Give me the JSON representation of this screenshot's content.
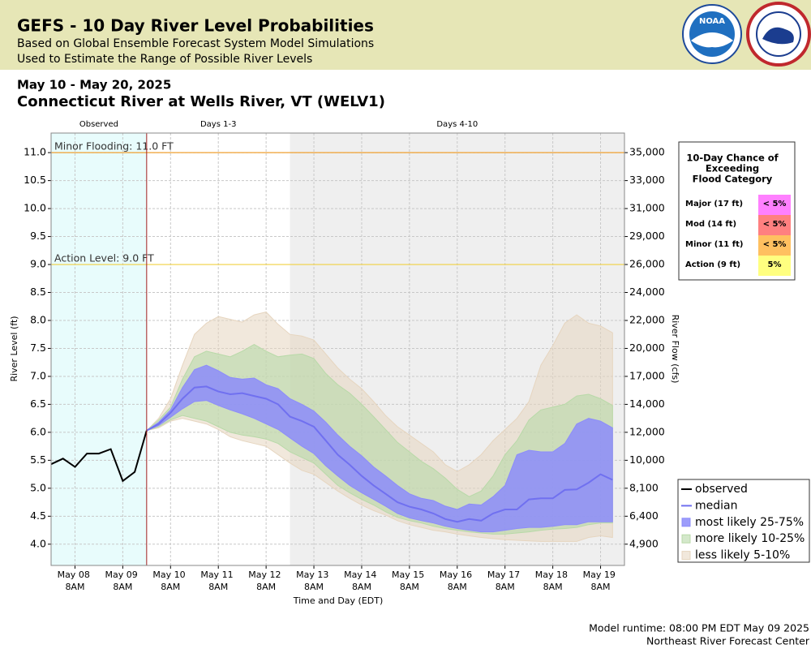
{
  "header": {
    "title": "GEFS - 10 Day River Level Probabilities",
    "subtitle": [
      "Based on Global Ensemble Forecast System Model Simulations",
      "Used to Estimate the Range of Possible River Levels"
    ],
    "logo": "NOAA"
  },
  "chart_data": {
    "type": "river-probability",
    "date_range": "May 10 - May 20, 2025",
    "title": "Connecticut River at Wells River, VT (WELV1)",
    "xlabel": "Time and Day (EDT)",
    "ylabel": "River Level (ft)",
    "y2label": "River Flow (cfs)",
    "grid": true,
    "legend": "lower right",
    "xlim": [
      "2025-05-07T20:00",
      "2025-05-19T20:00"
    ],
    "xticks": [
      {
        "value": "2025-05-08T08:00",
        "label": "May 08 8AM"
      },
      {
        "value": "2025-05-09T08:00",
        "label": "May 09 8AM"
      },
      {
        "value": "2025-05-10T08:00",
        "label": "May 10 8AM"
      },
      {
        "value": "2025-05-11T08:00",
        "label": "May 11 8AM"
      },
      {
        "value": "2025-05-12T08:00",
        "label": "May 12 8AM"
      },
      {
        "value": "2025-05-13T08:00",
        "label": "May 13 8AM"
      },
      {
        "value": "2025-05-14T08:00",
        "label": "May 14 8AM"
      },
      {
        "value": "2025-05-15T08:00",
        "label": "May 15 8AM"
      },
      {
        "value": "2025-05-16T08:00",
        "label": "May 16 8AM"
      },
      {
        "value": "2025-05-17T08:00",
        "label": "May 17 8AM"
      },
      {
        "value": "2025-05-18T08:00",
        "label": "May 18 8AM"
      },
      {
        "value": "2025-05-19T08:00",
        "label": "May 19 8AM"
      }
    ],
    "ylim": [
      3.62,
      11.35
    ],
    "yticks": [
      {
        "value": 4,
        "label": "4.0"
      },
      4.5,
      {
        "value": 5,
        "label": "5.0"
      },
      5.5,
      {
        "value": 6,
        "label": "6.0"
      },
      6.5,
      {
        "value": 7,
        "label": "7.0"
      },
      7.5,
      {
        "value": 8,
        "label": "8.0"
      },
      8.5,
      {
        "value": 9,
        "label": "9.0"
      },
      9.5,
      {
        "value": 10,
        "label": "10.0"
      },
      10.5,
      {
        "value": 11,
        "label": "11.0"
      }
    ],
    "y2ticks": [
      {
        "value": 4900,
        "label": "4,900",
        "stage": 4.0
      },
      {
        "value": 6400,
        "label": "6,400",
        "stage": 4.5
      },
      {
        "value": 8100,
        "label": "8,100",
        "stage": 5.0
      },
      {
        "value": 10000,
        "label": "10,000",
        "stage": 5.5
      },
      {
        "value": 12000,
        "label": "12,000",
        "stage": 6.0
      },
      {
        "value": 14000,
        "label": "14,000",
        "stage": 6.5
      },
      {
        "value": 17000,
        "label": "17,000",
        "stage": 7.0
      },
      {
        "value": 20000,
        "label": "20,000",
        "stage": 7.5
      },
      {
        "value": 22000,
        "label": "22,000",
        "stage": 8.0
      },
      {
        "value": 24000,
        "label": "24,000",
        "stage": 8.5
      },
      {
        "value": 26000,
        "label": "26,000",
        "stage": 9.0
      },
      {
        "value": 29000,
        "label": "29,000",
        "stage": 9.5
      },
      {
        "value": 31000,
        "label": "31,000",
        "stage": 10.0
      },
      {
        "value": 33000,
        "label": "33,000",
        "stage": 10.5
      },
      {
        "value": 35000,
        "label": "35,000",
        "stage": 11.0
      }
    ],
    "periods": [
      {
        "label": "Observed",
        "start": "2025-05-07T20:00",
        "end": "2025-05-09T20:00",
        "color": "#e8fcfc"
      },
      {
        "label": "Days 1-3",
        "start": "2025-05-09T20:00",
        "end": "2025-05-12T20:00",
        "color": "#ffffff"
      },
      {
        "label": "Days 4-10",
        "start": "2025-05-12T20:00",
        "end": "2025-05-19T20:00",
        "color": "#efefef"
      }
    ],
    "thresholds": [
      {
        "label": "Minor Flooding: 11.0 FT",
        "value": 11.0,
        "color": "#f0a030"
      },
      {
        "label": "Action Level: 9.0 FT",
        "value": 9.0,
        "color": "#f0d040"
      }
    ],
    "observed": {
      "name": "observed",
      "color": "#000000",
      "x": [
        "2025-05-07T20:00",
        "2025-05-08T02:00",
        "2025-05-08T08:00",
        "2025-05-08T14:00",
        "2025-05-08T20:00",
        "2025-05-09T02:00",
        "2025-05-09T08:00",
        "2025-05-09T14:00",
        "2025-05-09T20:00"
      ],
      "values": [
        5.43,
        5.53,
        5.38,
        5.62,
        5.62,
        5.7,
        5.13,
        5.29,
        6.03
      ]
    },
    "forecast": {
      "x": [
        "2025-05-09T20:00",
        "2025-05-10T02:00",
        "2025-05-10T08:00",
        "2025-05-10T14:00",
        "2025-05-10T20:00",
        "2025-05-11T02:00",
        "2025-05-11T08:00",
        "2025-05-11T14:00",
        "2025-05-11T20:00",
        "2025-05-12T02:00",
        "2025-05-12T08:00",
        "2025-05-12T14:00",
        "2025-05-12T20:00",
        "2025-05-13T02:00",
        "2025-05-13T08:00",
        "2025-05-13T14:00",
        "2025-05-13T20:00",
        "2025-05-14T02:00",
        "2025-05-14T08:00",
        "2025-05-14T14:00",
        "2025-05-14T20:00",
        "2025-05-15T02:00",
        "2025-05-15T08:00",
        "2025-05-15T14:00",
        "2025-05-15T20:00",
        "2025-05-16T02:00",
        "2025-05-16T08:00",
        "2025-05-16T14:00",
        "2025-05-16T20:00",
        "2025-05-17T02:00",
        "2025-05-17T08:00",
        "2025-05-17T14:00",
        "2025-05-17T20:00",
        "2025-05-18T02:00",
        "2025-05-18T08:00",
        "2025-05-18T14:00",
        "2025-05-18T20:00",
        "2025-05-19T02:00",
        "2025-05-19T08:00",
        "2025-05-19T14:00"
      ],
      "median": {
        "name": "median",
        "color": "#7070f0",
        "values": [
          6.03,
          6.15,
          6.35,
          6.6,
          6.8,
          6.82,
          6.73,
          6.68,
          6.7,
          6.65,
          6.6,
          6.5,
          6.28,
          6.2,
          6.1,
          5.85,
          5.6,
          5.42,
          5.22,
          5.05,
          4.9,
          4.75,
          4.67,
          4.62,
          4.55,
          4.45,
          4.4,
          4.45,
          4.42,
          4.55,
          4.62,
          4.62,
          4.8,
          4.82,
          4.82,
          4.97,
          4.98,
          5.1,
          5.25,
          5.15
        ]
      },
      "bands": [
        {
          "name": "less likely 5-10%",
          "color": "#e6d5bf",
          "lower": [
            6.03,
            6.08,
            6.2,
            6.25,
            6.2,
            6.15,
            6.05,
            5.92,
            5.85,
            5.8,
            5.75,
            5.6,
            5.45,
            5.32,
            5.25,
            5.1,
            4.95,
            4.82,
            4.7,
            4.6,
            4.52,
            4.42,
            4.35,
            4.3,
            4.25,
            4.22,
            4.18,
            4.15,
            4.12,
            4.1,
            4.08,
            4.07,
            4.06,
            4.05,
            4.05,
            4.05,
            4.05,
            4.12,
            4.15,
            4.12
          ],
          "upper": [
            6.03,
            6.25,
            6.6,
            7.2,
            7.75,
            7.95,
            8.07,
            8.02,
            7.97,
            8.1,
            8.15,
            7.93,
            7.75,
            7.72,
            7.65,
            7.4,
            7.15,
            6.95,
            6.78,
            6.55,
            6.3,
            6.1,
            5.95,
            5.8,
            5.65,
            5.42,
            5.3,
            5.42,
            5.6,
            5.85,
            6.05,
            6.25,
            6.55,
            7.2,
            7.55,
            7.95,
            8.1,
            7.95,
            7.9,
            7.78
          ]
        },
        {
          "name": "more likely 10-25%",
          "color": "#b8d9a8",
          "lower": [
            6.03,
            6.1,
            6.22,
            6.3,
            6.25,
            6.2,
            6.1,
            6.0,
            5.95,
            5.92,
            5.88,
            5.8,
            5.65,
            5.55,
            5.45,
            5.25,
            5.05,
            4.92,
            4.8,
            4.7,
            4.58,
            4.48,
            4.42,
            4.38,
            4.32,
            4.28,
            4.25,
            4.22,
            4.2,
            4.18,
            4.18,
            4.2,
            4.22,
            4.25,
            4.27,
            4.28,
            4.3,
            4.35,
            4.38,
            4.38
          ],
          "upper": [
            6.03,
            6.22,
            6.45,
            6.95,
            7.35,
            7.45,
            7.4,
            7.35,
            7.45,
            7.57,
            7.45,
            7.35,
            7.38,
            7.4,
            7.32,
            7.05,
            6.85,
            6.7,
            6.5,
            6.28,
            6.05,
            5.82,
            5.65,
            5.48,
            5.35,
            5.18,
            4.98,
            4.85,
            4.95,
            5.22,
            5.6,
            5.85,
            6.22,
            6.4,
            6.45,
            6.5,
            6.65,
            6.68,
            6.6,
            6.48
          ]
        },
        {
          "name": "most likely 25-75%",
          "color": "#8c8cfa",
          "lower": [
            6.03,
            6.12,
            6.27,
            6.42,
            6.55,
            6.57,
            6.48,
            6.4,
            6.33,
            6.25,
            6.15,
            6.05,
            5.9,
            5.75,
            5.62,
            5.4,
            5.22,
            5.05,
            4.92,
            4.8,
            4.68,
            4.55,
            4.47,
            4.42,
            4.38,
            4.32,
            4.28,
            4.25,
            4.22,
            4.22,
            4.25,
            4.28,
            4.3,
            4.3,
            4.32,
            4.35,
            4.35,
            4.4,
            4.4,
            4.4
          ],
          "upper": [
            6.03,
            6.18,
            6.4,
            6.8,
            7.12,
            7.2,
            7.1,
            6.98,
            6.95,
            6.97,
            6.85,
            6.78,
            6.6,
            6.5,
            6.38,
            6.18,
            5.95,
            5.75,
            5.58,
            5.38,
            5.22,
            5.05,
            4.9,
            4.82,
            4.78,
            4.68,
            4.62,
            4.72,
            4.7,
            4.85,
            5.05,
            5.6,
            5.68,
            5.65,
            5.65,
            5.8,
            6.15,
            6.25,
            6.2,
            6.08
          ]
        }
      ]
    }
  },
  "flood_table": {
    "title": [
      "10-Day Chance of",
      "Exceeding",
      "Flood Category"
    ],
    "rows": [
      {
        "category": "Major (17 ft)",
        "chance": "< 5%",
        "color": "#ff80ff"
      },
      {
        "category": "Mod (14 ft)",
        "chance": "< 5%",
        "color": "#ff8080"
      },
      {
        "category": "Minor (11 ft)",
        "chance": "< 5%",
        "color": "#ffc060"
      },
      {
        "category": "Action (9 ft)",
        "chance": "5%",
        "color": "#ffff80"
      }
    ]
  },
  "footer": [
    "Model runtime: 08:00 PM EDT May 09 2025",
    "Northeast River Forecast Center"
  ]
}
